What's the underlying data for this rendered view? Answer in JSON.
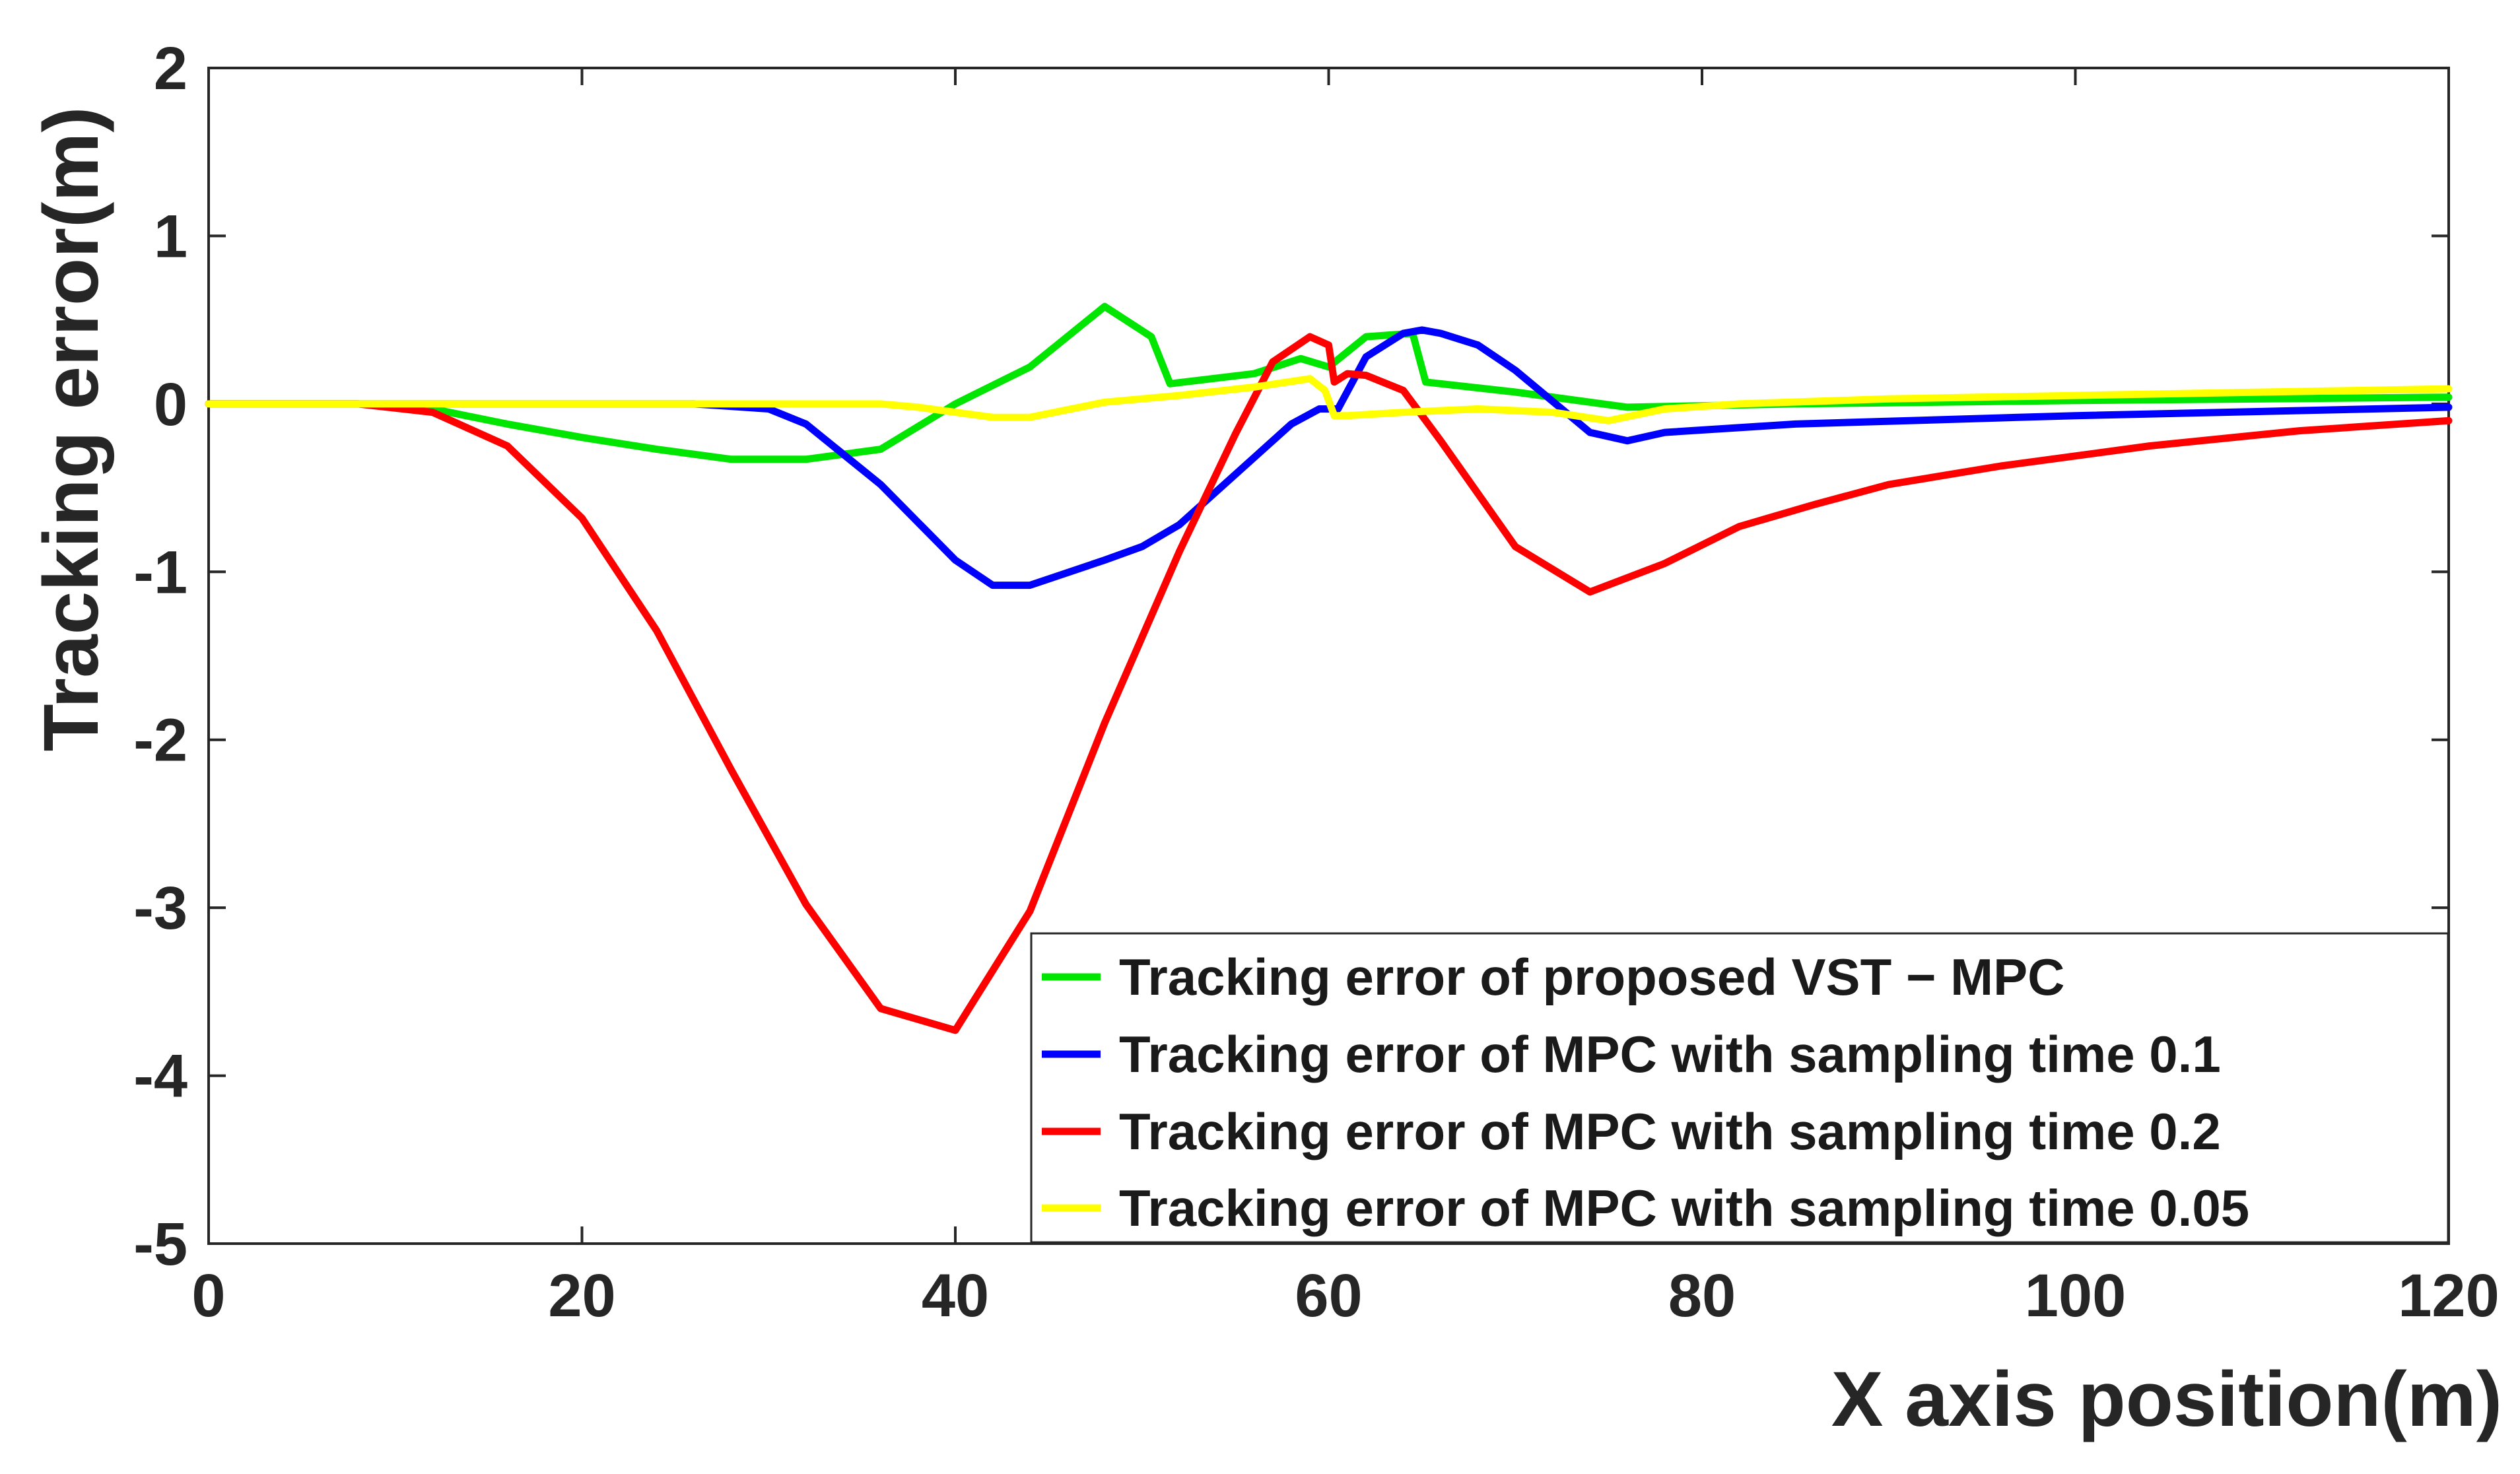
{
  "chart_data": {
    "type": "line",
    "title": "",
    "xlabel": "X axis position(m)",
    "ylabel": "Tracking error(m)",
    "xlim": [
      0,
      120
    ],
    "ylim": [
      -5,
      2
    ],
    "xticks": [
      0,
      20,
      40,
      60,
      80,
      100,
      120
    ],
    "yticks": [
      -5,
      -4,
      -3,
      -2,
      -1,
      0,
      1,
      2
    ],
    "grid": false,
    "legend_position": "bottom-right",
    "series": [
      {
        "name": "Tracking error of proposed VST − MPC",
        "color": "#00e600",
        "x": [
          0,
          8,
          12,
          16,
          20,
          24,
          28,
          30,
          32,
          36,
          40,
          44,
          48,
          50.5,
          51.5,
          56,
          58.5,
          60,
          62,
          64.5,
          65.2,
          70,
          76,
          85,
          100,
          120
        ],
        "y": [
          0,
          0,
          -0.03,
          -0.12,
          -0.2,
          -0.27,
          -0.33,
          -0.33,
          -0.33,
          -0.27,
          0,
          0.22,
          0.58,
          0.4,
          0.12,
          0.18,
          0.27,
          0.22,
          0.4,
          0.42,
          0.13,
          0.07,
          -0.02,
          0.0,
          0.02,
          0.04
        ]
      },
      {
        "name": "Tracking error of MPC with sampling time 0.1",
        "color": "#0000ff",
        "x": [
          0,
          20,
          26,
          30,
          32,
          36,
          40,
          42,
          44,
          48,
          50,
          52,
          56,
          58,
          59.5,
          60.5,
          62,
          64,
          65,
          66,
          68,
          70,
          74,
          76,
          78,
          85,
          100,
          120
        ],
        "y": [
          0,
          0,
          0,
          -0.03,
          -0.12,
          -0.48,
          -0.93,
          -1.08,
          -1.08,
          -0.93,
          -0.85,
          -0.72,
          -0.32,
          -0.12,
          -0.03,
          -0.03,
          0.28,
          0.42,
          0.44,
          0.42,
          0.35,
          0.2,
          -0.17,
          -0.22,
          -0.17,
          -0.12,
          -0.07,
          -0.02
        ]
      },
      {
        "name": "Tracking error of MPC with sampling time 0.2",
        "color": "#ff0000",
        "x": [
          0,
          8,
          12,
          16,
          20,
          24,
          28,
          32,
          36,
          40,
          44,
          48,
          52,
          55,
          57,
          59,
          60,
          60.3,
          61,
          62,
          64,
          66,
          70,
          74,
          78,
          82,
          86,
          90,
          96,
          104,
          112,
          120
        ],
        "y": [
          0,
          0,
          -0.05,
          -0.25,
          -0.68,
          -1.35,
          -2.18,
          -2.98,
          -3.6,
          -3.73,
          -3.02,
          -1.9,
          -0.88,
          -0.18,
          0.25,
          0.4,
          0.35,
          0.13,
          0.18,
          0.17,
          0.08,
          -0.22,
          -0.85,
          -1.12,
          -0.95,
          -0.73,
          -0.6,
          -0.48,
          -0.37,
          -0.25,
          -0.16,
          -0.1
        ]
      },
      {
        "name": "Tracking error of MPC with sampling time 0.05",
        "color": "#ffff00",
        "x": [
          0,
          36,
          38,
          40,
          42,
          44,
          48,
          52,
          56,
          59,
          59.8,
          60.3,
          61,
          64,
          68,
          72,
          75,
          78,
          82,
          90,
          100,
          110,
          120
        ],
        "y": [
          0,
          0,
          -0.02,
          -0.05,
          -0.08,
          -0.08,
          0.01,
          0.05,
          0.1,
          0.15,
          0.08,
          -0.07,
          -0.07,
          -0.05,
          -0.03,
          -0.05,
          -0.1,
          -0.03,
          0.0,
          0.03,
          0.05,
          0.07,
          0.09
        ]
      }
    ]
  }
}
